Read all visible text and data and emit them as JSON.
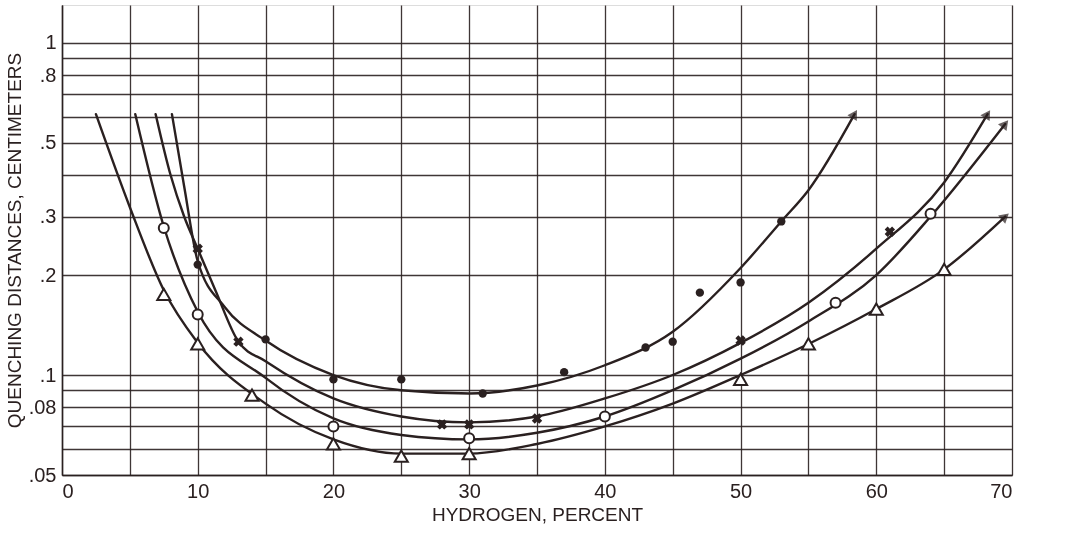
{
  "chart_data": {
    "type": "line",
    "xlabel": "HYDROGEN, PERCENT",
    "ylabel": "QUENCHING DISTANCES, CENTIMETERS",
    "xlim": [
      0,
      70
    ],
    "ylim": [
      0.05,
      1.3
    ],
    "log": "y",
    "grid": true,
    "line_style": "solid",
    "xticks": [
      0,
      {
        "value": 5,
        "label": null
      },
      10,
      {
        "value": 15,
        "label": null
      },
      20,
      {
        "value": 25,
        "label": null
      },
      30,
      {
        "value": 35,
        "label": null
      },
      40,
      {
        "value": 45,
        "label": null
      },
      50,
      {
        "value": 55,
        "label": null
      },
      60,
      {
        "value": 65,
        "label": null
      },
      70
    ],
    "yticks": [
      {
        "value": 0.05,
        "label": ".05"
      },
      {
        "value": 0.06,
        "label": null
      },
      {
        "value": 0.07,
        "label": null
      },
      {
        "value": 0.08,
        "label": ".08"
      },
      {
        "value": 0.09,
        "label": null
      },
      {
        "value": 0.1,
        "label": ".1"
      },
      {
        "value": 0.2,
        "label": ".2"
      },
      {
        "value": 0.3,
        "label": ".3"
      },
      {
        "value": 0.4,
        "label": null
      },
      {
        "value": 0.5,
        "label": ".5"
      },
      {
        "value": 0.6,
        "label": null
      },
      {
        "value": 0.7,
        "label": null
      },
      {
        "value": 0.8,
        "label": ".8"
      },
      {
        "value": 0.9,
        "label": null
      },
      {
        "value": 1,
        "label": "1"
      }
    ],
    "series": [
      {
        "color": "#2a2020",
        "marker": "none",
        "x": [
          8.1,
          9,
          10,
          12,
          15,
          20,
          25,
          30,
          35,
          40,
          45,
          50,
          53,
          55,
          58.4
        ],
        "values": [
          0.61,
          0.37,
          0.22,
          0.16,
          0.127,
          0.1,
          0.09,
          0.088,
          0.093,
          0.107,
          0.135,
          0.21,
          0.29,
          0.36,
          0.61
        ]
      },
      {
        "color": "#2a2020",
        "marker": "none",
        "x": [
          6.9,
          8,
          9,
          10,
          11.3,
          13,
          15,
          20,
          25,
          30,
          35,
          40,
          45,
          50,
          55,
          60,
          65,
          68.2
        ],
        "values": [
          0.61,
          0.4,
          0.3,
          0.24,
          0.18,
          0.126,
          0.11,
          0.085,
          0.075,
          0.072,
          0.075,
          0.085,
          0.1,
          0.125,
          0.165,
          0.24,
          0.38,
          0.61
        ]
      },
      {
        "color": "#2a2020",
        "marker": "none",
        "x": [
          5.4,
          7.5,
          10,
          15,
          20,
          25,
          30,
          35,
          40,
          45,
          50,
          55,
          60,
          64,
          69.5
        ],
        "values": [
          0.61,
          0.28,
          0.155,
          0.098,
          0.074,
          0.066,
          0.064,
          0.067,
          0.075,
          0.09,
          0.112,
          0.145,
          0.2,
          0.3,
          0.57
        ]
      },
      {
        "color": "#2a2020",
        "marker": "none",
        "x": [
          2.5,
          5,
          7.5,
          10,
          15,
          20,
          25,
          30,
          35,
          40,
          45,
          50,
          55,
          60,
          65,
          69.5
        ],
        "values": [
          0.61,
          0.32,
          0.18,
          0.125,
          0.082,
          0.064,
          0.058,
          0.058,
          0.062,
          0.07,
          0.082,
          0.1,
          0.124,
          0.158,
          0.208,
          0.3
        ]
      },
      {
        "type": "scatter",
        "color": "#2a2020",
        "marker": "circle",
        "x": [
          10,
          15,
          20,
          25,
          31,
          37,
          43,
          45,
          47,
          50,
          53
        ],
        "values": [
          0.215,
          0.128,
          0.097,
          0.097,
          0.088,
          0.102,
          0.121,
          0.126,
          0.177,
          0.19,
          0.29
        ]
      },
      {
        "type": "scatter",
        "color": "#2a2020",
        "marker": "cross",
        "x": [
          10,
          13,
          28,
          30,
          35,
          50,
          61
        ],
        "values": [
          0.24,
          0.126,
          0.071,
          0.071,
          0.074,
          0.127,
          0.27
        ]
      },
      {
        "type": "scatter",
        "color": "#2a2020",
        "marker": "circle",
        "x": [
          7.5,
          10,
          20,
          30,
          40,
          57,
          64
        ],
        "values": [
          0.277,
          0.152,
          0.07,
          0.0645,
          0.075,
          0.165,
          0.306
        ]
      },
      {
        "type": "scatter",
        "color": "#2a2020",
        "marker": "triangle",
        "x": [
          7.5,
          10,
          14,
          20,
          25,
          30,
          50,
          55,
          60,
          65
        ],
        "values": [
          0.175,
          0.124,
          0.087,
          0.062,
          0.057,
          0.058,
          0.097,
          0.124,
          0.158,
          0.208
        ]
      }
    ]
  }
}
